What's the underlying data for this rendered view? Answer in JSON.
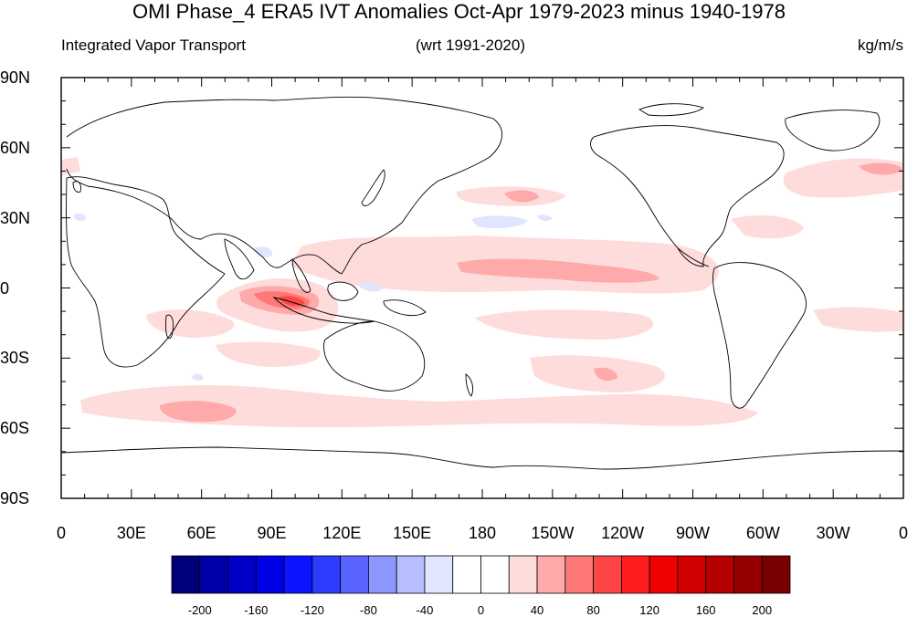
{
  "header": {
    "title": "OMI Phase_4 ERA5 IVT Anomalies Oct-Apr 1979-2023 minus 1940-1978",
    "left_subtitle": "Integrated Vapor Transport",
    "center_subtitle": "(wrt 1991-2020)",
    "right_subtitle": "kg/m/s"
  },
  "axes": {
    "lat_labels": [
      "90N",
      "60N",
      "30N",
      "0",
      "30S",
      "60S",
      "90S"
    ],
    "lon_labels": [
      "0",
      "30E",
      "60E",
      "90E",
      "120E",
      "150E",
      "180",
      "150W",
      "120W",
      "90W",
      "60W",
      "30W",
      "0"
    ]
  },
  "colorbar": {
    "colors": [
      "#00007a",
      "#0000a8",
      "#0000c8",
      "#0000e6",
      "#0a14ff",
      "#2e3cff",
      "#5a64ff",
      "#8c96ff",
      "#b8bdff",
      "#e2e5ff",
      "#ffffff",
      "#ffffff",
      "#ffdcdc",
      "#ffaaaa",
      "#ff7878",
      "#ff4646",
      "#ff1e1e",
      "#f00000",
      "#d20000",
      "#b40000",
      "#960000",
      "#780000"
    ],
    "labels": [
      "-200",
      "-160",
      "-120",
      "-80",
      "-40",
      "0",
      "40",
      "80",
      "120",
      "160",
      "200"
    ]
  },
  "map_data": {
    "projection": "cylindrical equidistant, centered 180",
    "lat_range": [
      -90,
      90
    ],
    "lon_range": [
      0,
      360
    ],
    "anomaly_regions": [
      {
        "name": "tropical-north-pacific",
        "level": 40
      },
      {
        "name": "central-pacific-core",
        "level": 80
      },
      {
        "name": "eastern-indian-ocean-maximum",
        "level": 120
      },
      {
        "name": "south-indian-ocean",
        "level": 40
      },
      {
        "name": "southern-ocean-band",
        "level": 40
      },
      {
        "name": "north-atlantic",
        "level": 40
      },
      {
        "name": "north-pacific-subtropical-negative",
        "level": -40
      }
    ]
  }
}
